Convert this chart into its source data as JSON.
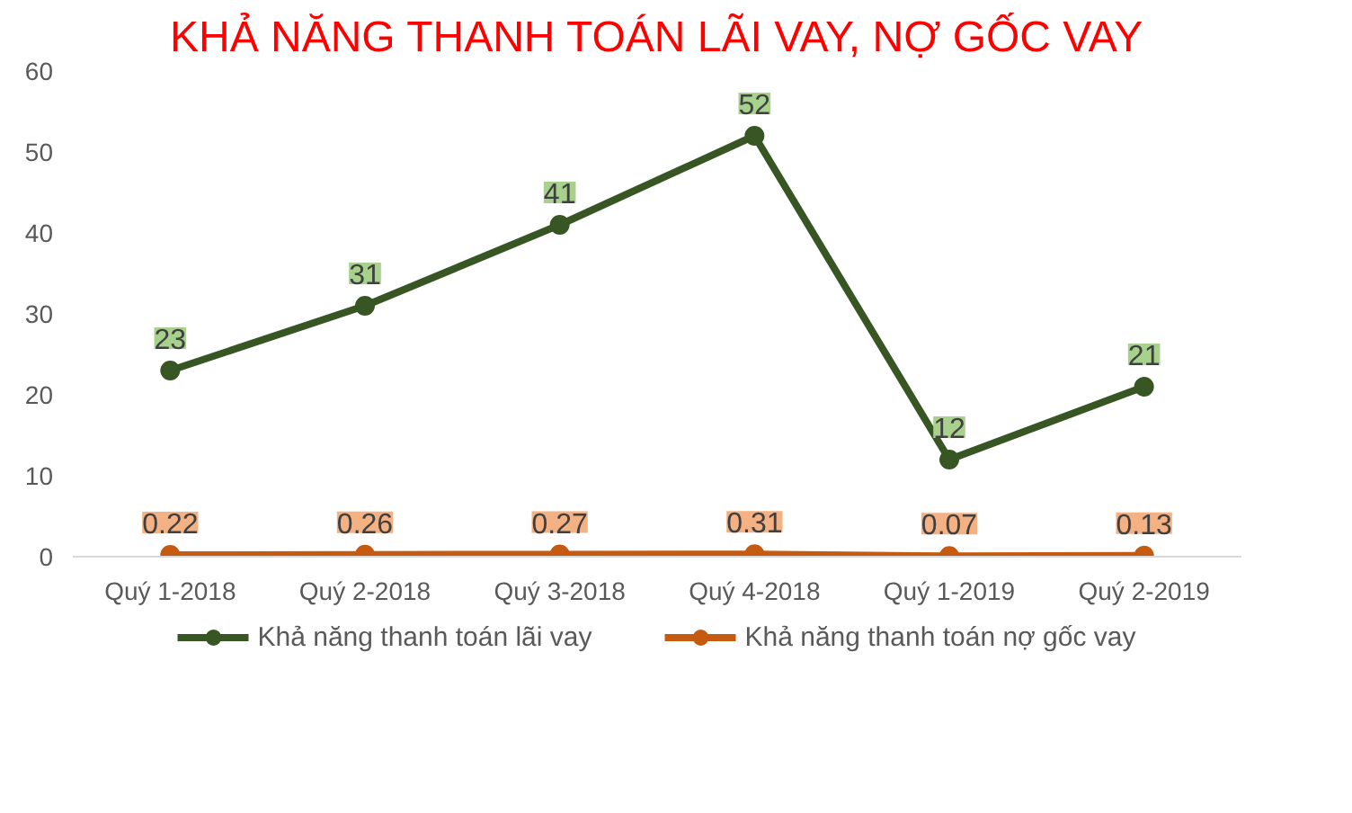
{
  "chart_data": {
    "type": "line",
    "title": "KHẢ NĂNG THANH TOÁN LÃI VAY, NỢ GỐC VAY",
    "categories": [
      "Quý 1-2018",
      "Quý 2-2018",
      "Quý 3-2018",
      "Quý 4-2018",
      "Quý 1-2019",
      "Quý 2-2019"
    ],
    "series": [
      {
        "name": "Khả năng thanh toán lãi vay",
        "color": "#375623",
        "values": [
          23,
          31,
          41,
          52,
          12,
          21
        ]
      },
      {
        "name": "Khả năng thanh toán nợ gốc vay",
        "color": "#c55a11",
        "values": [
          0.22,
          0.26,
          0.27,
          0.31,
          0.07,
          0.13
        ]
      }
    ],
    "ylim": [
      0,
      60
    ],
    "yticks": [
      0,
      10,
      20,
      30,
      40,
      50,
      60
    ],
    "grid": false,
    "legend": "bottom",
    "marker": "circle",
    "line_style": "solid",
    "data_labels": true
  }
}
